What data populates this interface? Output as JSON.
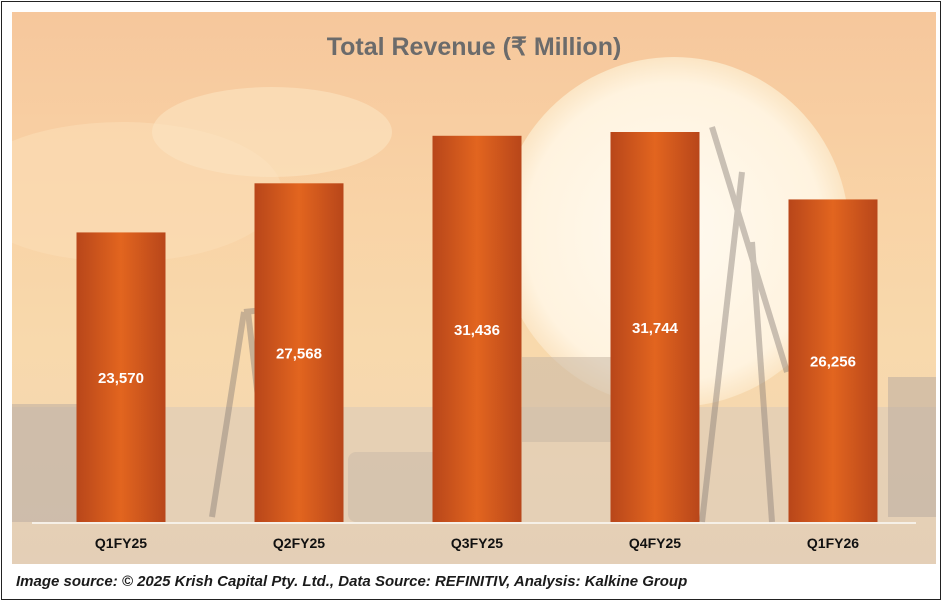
{
  "chart_data": {
    "type": "bar",
    "title": "Total Revenue (₹ Million)",
    "categories": [
      "Q1FY25",
      "Q2FY25",
      "Q3FY25",
      "Q4FY25",
      "Q1FY26"
    ],
    "values": [
      23570,
      27568,
      31436,
      31744,
      26256
    ],
    "value_labels": [
      "23,570",
      "27,568",
      "31,436",
      "31,744",
      "26,256"
    ],
    "ylim": [
      0,
      32000
    ],
    "grid": false,
    "legend": "none",
    "bar_color": "#c8501c",
    "label_color": "#ffffff"
  },
  "footer": {
    "source": "Image source: © 2025 Krish Capital Pty. Ltd., Data Source: REFINITIV, Analysis: Kalkine Group"
  }
}
